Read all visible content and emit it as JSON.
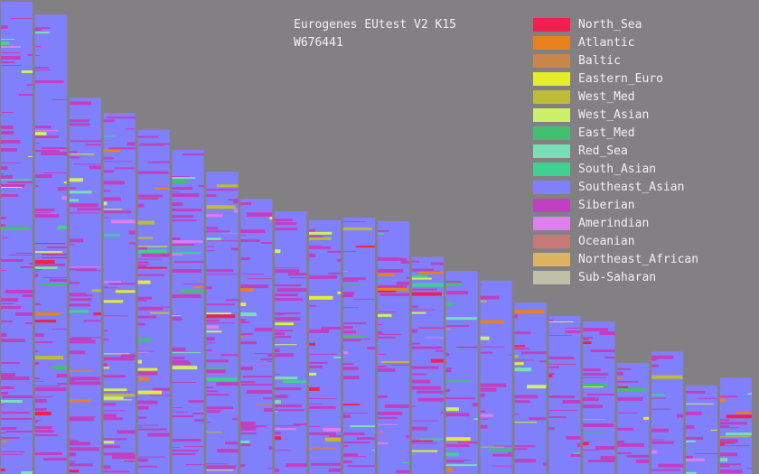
{
  "chart_data": {
    "type": "area",
    "title": "Eurogenes EUtest V2 K15",
    "subtitle": "W676441",
    "chromosomes": [
      {
        "top_value": 248.9
      },
      {
        "top_value": 242.2
      },
      {
        "top_value": 198.3
      },
      {
        "top_value": 190.2
      },
      {
        "top_value": 181.5
      },
      {
        "top_value": 170.8
      },
      {
        "top_value": 159.3
      },
      {
        "top_value": 145.1
      },
      {
        "top_value": 138.4
      },
      {
        "top_value": 133.8
      },
      {
        "top_value": 135.1
      },
      {
        "top_value": 133.3
      },
      {
        "top_value": 114.4
      },
      {
        "top_value": 107.0
      },
      {
        "top_value": 102.0
      },
      {
        "top_value": 90.3
      },
      {
        "top_value": 83.3
      },
      {
        "top_value": 80.4
      },
      {
        "top_value": 58.6
      },
      {
        "top_value": 64.4
      },
      {
        "top_value": 46.7
      },
      {
        "top_value": 50.8
      }
    ],
    "ylim": [
      0,
      248.9
    ],
    "dominant_component": "Southeast_Asian",
    "secondary_components": [
      "Siberian",
      "Eastern_Euro",
      "West_Asian",
      "Atlantic",
      "North_Sea",
      "South_Asian",
      "Red_Sea",
      "East_Med",
      "Amerindian",
      "West_Med"
    ],
    "legend_position": "top-right",
    "legend": [
      {
        "name": "North_Sea",
        "color": "#f02050"
      },
      {
        "name": "Atlantic",
        "color": "#e8821e"
      },
      {
        "name": "Baltic",
        "color": "#c8874a"
      },
      {
        "name": "Eastern_Euro",
        "color": "#e4ee2a"
      },
      {
        "name": "West_Med",
        "color": "#bcbc36"
      },
      {
        "name": "West_Asian",
        "color": "#ccf066"
      },
      {
        "name": "East_Med",
        "color": "#40c070"
      },
      {
        "name": "Red_Sea",
        "color": "#78e0b8"
      },
      {
        "name": "South_Asian",
        "color": "#40d090"
      },
      {
        "name": "Southeast_Asian",
        "color": "#8080fc"
      },
      {
        "name": "Siberian",
        "color": "#c040c0"
      },
      {
        "name": "Amerindian",
        "color": "#dc80ee"
      },
      {
        "name": "Oceanian",
        "color": "#c87878"
      },
      {
        "name": "Northeast_African",
        "color": "#dcb460"
      },
      {
        "name": "Sub-Saharan",
        "color": "#c0c0a8"
      }
    ]
  }
}
